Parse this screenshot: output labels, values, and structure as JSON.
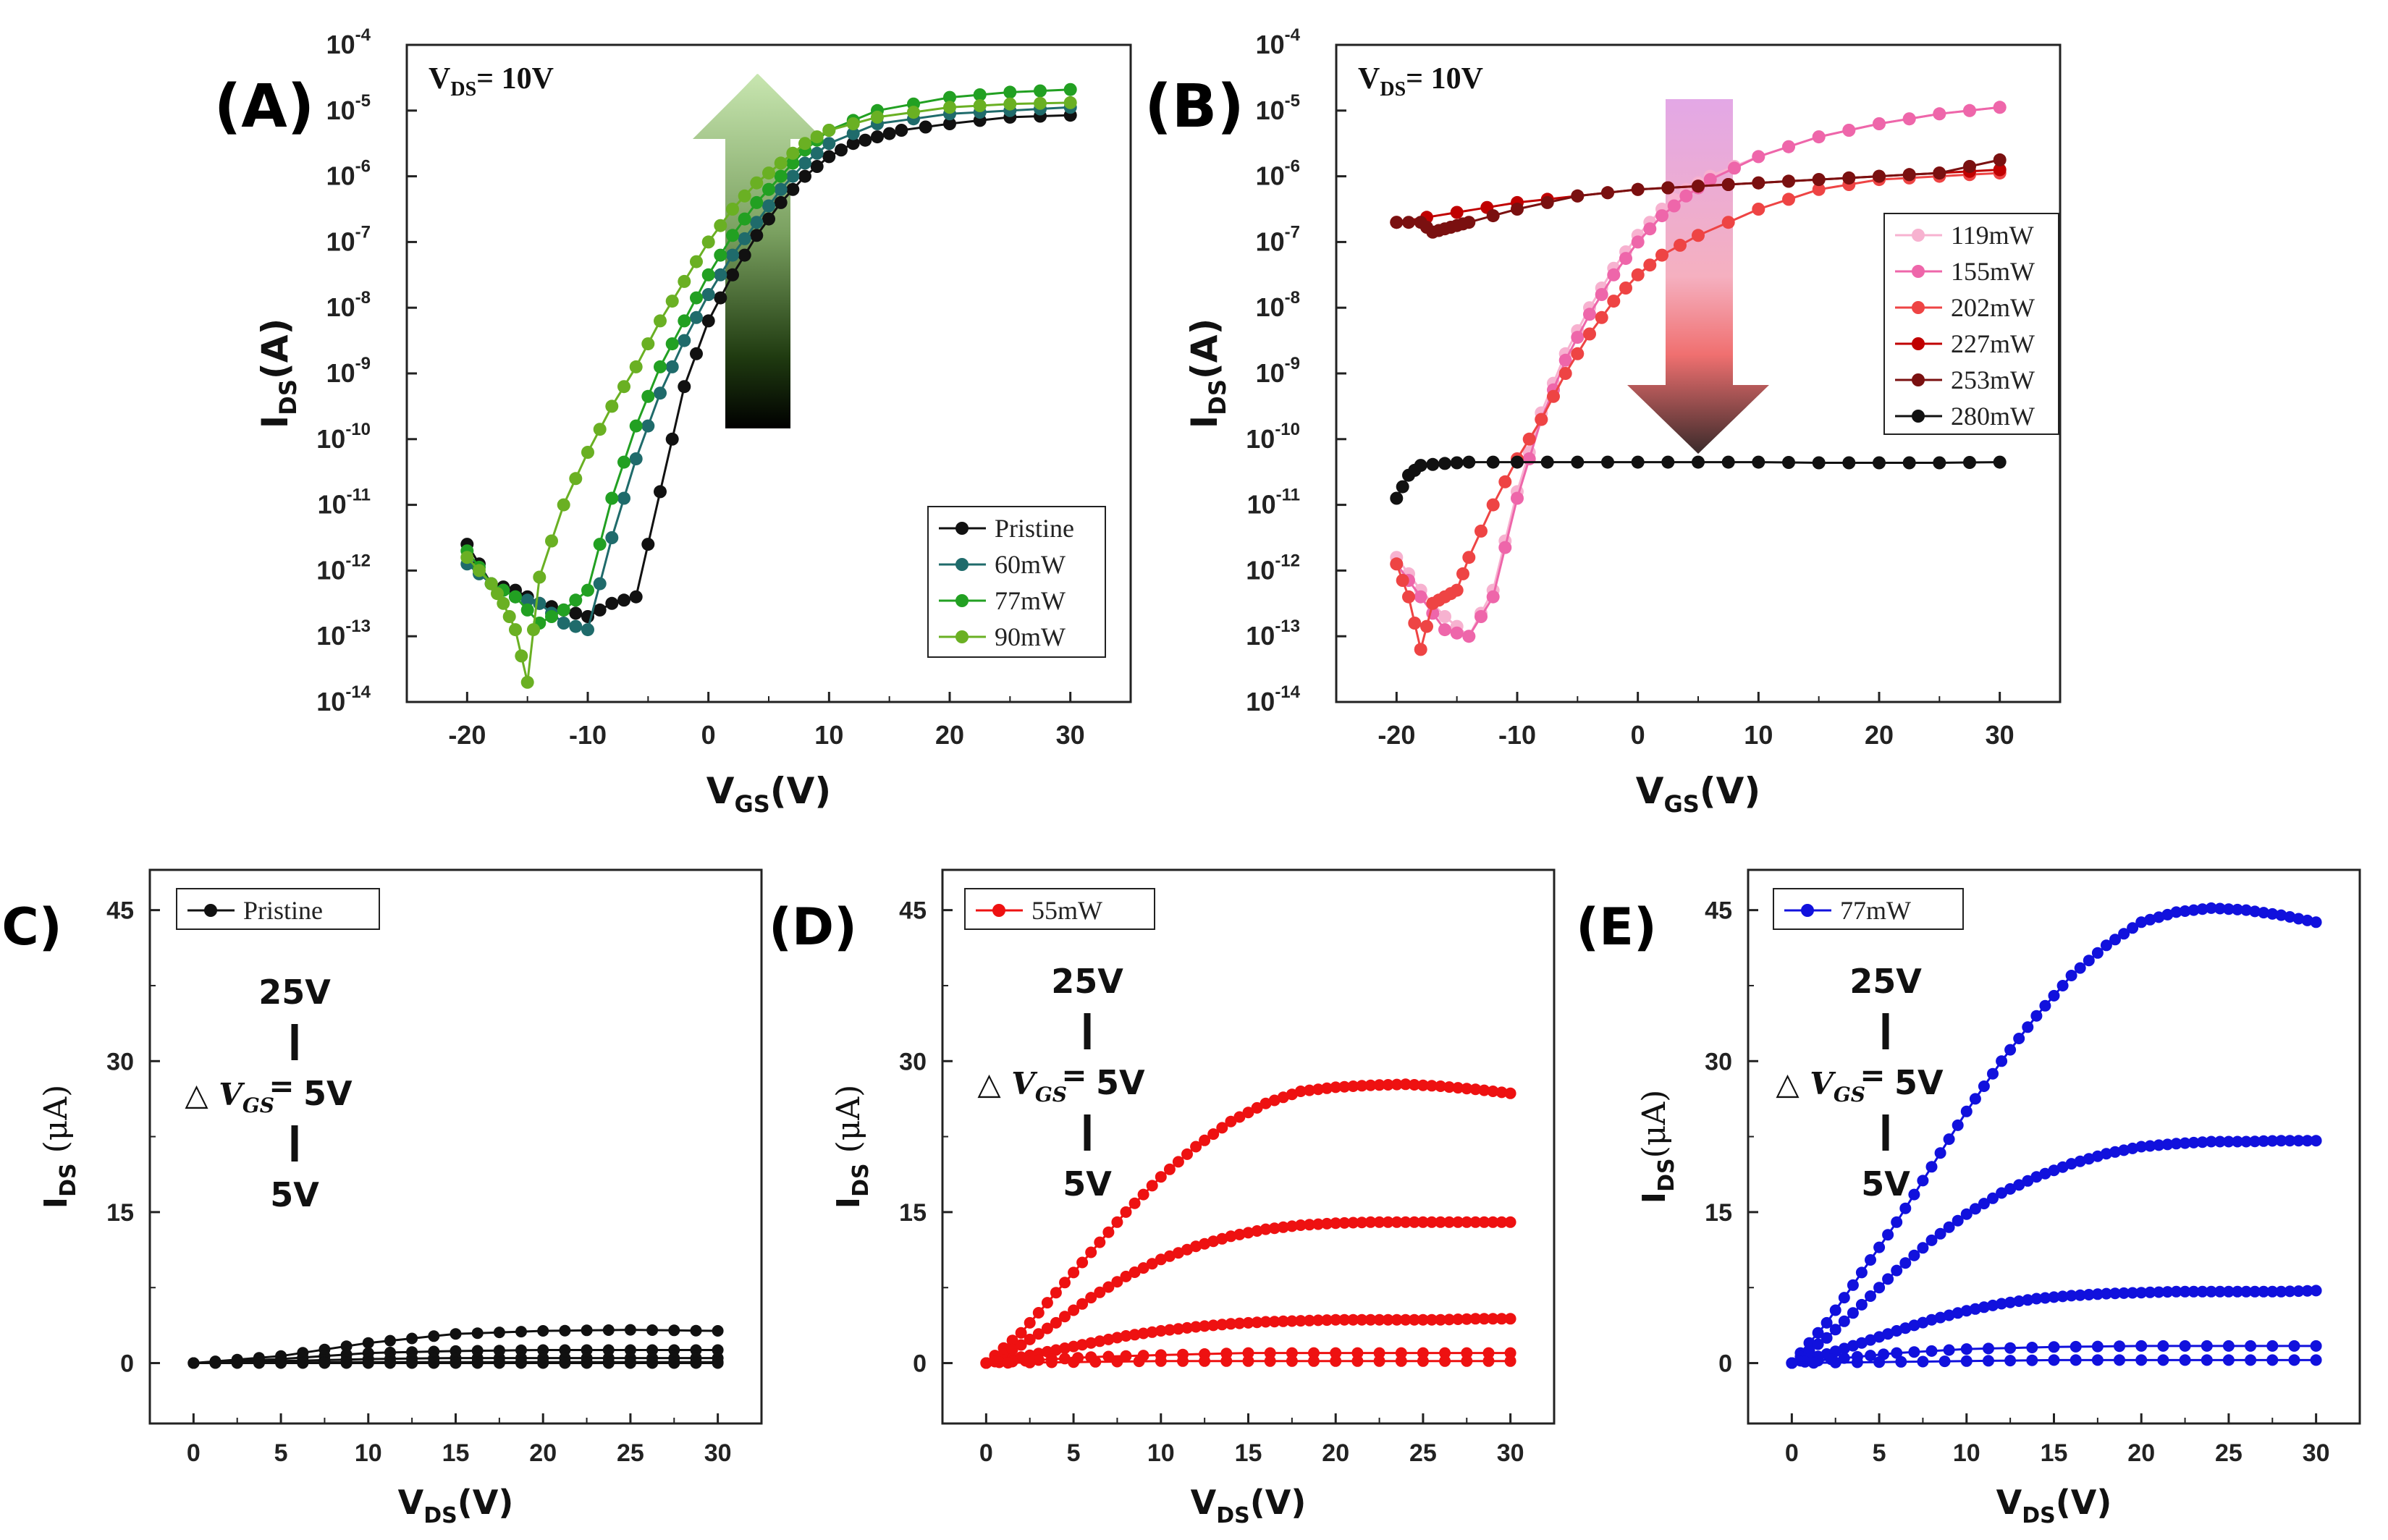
{
  "panels": [
    {
      "id": "A",
      "label": "(A)",
      "type": "line",
      "yscale": "log",
      "xlabel": "V",
      "xlabel_sub": "GS",
      "xlabel_unit": "(V)",
      "ylabel": "I",
      "ylabel_sub": "DS",
      "ylabel_unit": "(A)",
      "xlim": [
        -25,
        35
      ],
      "ylim_exp": [
        -14,
        -4
      ],
      "xticks": [
        -20,
        -10,
        0,
        10,
        20,
        30
      ],
      "yticks": [
        -14,
        -13,
        -12,
        -11,
        -10,
        -9,
        -8,
        -7,
        -6,
        -5,
        -4
      ],
      "annotation": {
        "main": "V",
        "sub": "DS",
        "rest": "= 10V"
      },
      "arrow": "up",
      "legend_position": "bottom-right",
      "series": [
        {
          "name": "Pristine",
          "color": "#111111",
          "x": [
            -20,
            -18,
            -16,
            -14,
            -12,
            -10,
            -8,
            -6,
            -4,
            -2,
            0,
            2,
            4,
            6,
            8,
            10,
            12,
            14,
            16,
            20,
            25,
            30
          ],
          "y": [
            -11.6,
            -12.2,
            -12.3,
            -12.5,
            -12.6,
            -12.7,
            -12.5,
            -12.4,
            -10.8,
            -9.2,
            -8.2,
            -7.5,
            -6.9,
            -6.4,
            -6.0,
            -5.7,
            -5.5,
            -5.4,
            -5.3,
            -5.2,
            -5.1,
            -5.07
          ]
        },
        {
          "name": "60mW",
          "color": "#1f6b6b",
          "x": [
            -20,
            -18,
            -16,
            -14,
            -12,
            -10,
            -8,
            -6,
            -4,
            -2,
            0,
            2,
            4,
            6,
            8,
            10,
            14,
            20,
            25,
            30
          ],
          "y": [
            -11.9,
            -12.2,
            -12.4,
            -12.5,
            -12.8,
            -12.9,
            -11.5,
            -10.3,
            -9.3,
            -8.5,
            -7.8,
            -7.2,
            -6.7,
            -6.2,
            -5.8,
            -5.5,
            -5.2,
            -5.05,
            -5.0,
            -4.95
          ]
        },
        {
          "name": "77mW",
          "color": "#22a022",
          "x": [
            -20,
            -18,
            -16,
            -14,
            -12,
            -10,
            -8,
            -6,
            -4,
            -2,
            0,
            2,
            4,
            6,
            8,
            10,
            14,
            20,
            25,
            30
          ],
          "y": [
            -11.7,
            -12.2,
            -12.4,
            -12.8,
            -12.6,
            -12.3,
            -10.9,
            -9.8,
            -8.9,
            -8.2,
            -7.5,
            -6.9,
            -6.4,
            -6.0,
            -5.6,
            -5.3,
            -5.0,
            -4.8,
            -4.72,
            -4.68
          ]
        },
        {
          "name": "90mW",
          "color": "#6ab023",
          "x": [
            -20,
            -18,
            -17,
            -16,
            -15,
            -14,
            -12,
            -10,
            -8,
            -6,
            -4,
            -2,
            0,
            2,
            4,
            6,
            8,
            10,
            14,
            20,
            25,
            30
          ],
          "y": [
            -11.8,
            -12.2,
            -12.5,
            -12.9,
            -13.7,
            -12.1,
            -11.0,
            -10.2,
            -9.5,
            -8.9,
            -8.2,
            -7.6,
            -7.0,
            -6.5,
            -6.1,
            -5.8,
            -5.5,
            -5.3,
            -5.1,
            -4.95,
            -4.9,
            -4.88
          ]
        }
      ]
    },
    {
      "id": "B",
      "label": "(B)",
      "type": "line",
      "yscale": "log",
      "xlabel": "V",
      "xlabel_sub": "GS",
      "xlabel_unit": "(V)",
      "ylabel": "I",
      "ylabel_sub": "DS",
      "ylabel_unit": "(A)",
      "xlim": [
        -25,
        35
      ],
      "ylim_exp": [
        -14,
        -4
      ],
      "xticks": [
        -20,
        -10,
        0,
        10,
        20,
        30
      ],
      "yticks": [
        -14,
        -13,
        -12,
        -11,
        -10,
        -9,
        -8,
        -7,
        -6,
        -5,
        -4
      ],
      "annotation": {
        "main": "V",
        "sub": "DS",
        "rest": "= 10V"
      },
      "arrow": "down",
      "legend_position": "right",
      "series": [
        {
          "name": "119mW",
          "color": "#f7b2d0",
          "x": [
            -20,
            -18,
            -16,
            -14,
            -12,
            -10,
            -8,
            -6,
            -4,
            -2,
            0,
            2,
            4,
            6,
            10,
            15,
            20,
            25,
            30
          ],
          "y": [
            -11.8,
            -12.3,
            -12.7,
            -13.0,
            -12.3,
            -10.8,
            -9.6,
            -8.7,
            -8.0,
            -7.4,
            -6.9,
            -6.5,
            -6.2,
            -6.0,
            -5.7,
            -5.4,
            -5.2,
            -5.05,
            -4.95
          ]
        },
        {
          "name": "155mW",
          "color": "#ee66aa",
          "x": [
            -20,
            -18,
            -16,
            -14,
            -12,
            -10,
            -8,
            -6,
            -4,
            -2,
            0,
            2,
            4,
            6,
            10,
            15,
            20,
            25,
            30
          ],
          "y": [
            -11.9,
            -12.4,
            -12.9,
            -13.0,
            -12.4,
            -10.9,
            -9.7,
            -8.8,
            -8.1,
            -7.5,
            -7.0,
            -6.6,
            -6.3,
            -6.05,
            -5.7,
            -5.4,
            -5.2,
            -5.05,
            -4.95
          ]
        },
        {
          "name": "202mW",
          "color": "#ee4444",
          "x": [
            -20,
            -19,
            -18,
            -17,
            -16,
            -15,
            -14,
            -12,
            -10,
            -8,
            -6,
            -4,
            -2,
            0,
            2,
            5,
            10,
            15,
            20,
            25,
            30
          ],
          "y": [
            -11.9,
            -12.4,
            -13.2,
            -12.5,
            -12.4,
            -12.3,
            -11.8,
            -11.0,
            -10.3,
            -9.7,
            -9.0,
            -8.4,
            -7.9,
            -7.5,
            -7.2,
            -6.9,
            -6.5,
            -6.2,
            -6.05,
            -6.0,
            -5.95
          ]
        },
        {
          "name": "227mW",
          "color": "#c00000",
          "x": [
            -20,
            -15,
            -10,
            -5,
            0,
            5,
            10,
            15,
            20,
            25,
            30
          ],
          "y": [
            -6.7,
            -6.55,
            -6.4,
            -6.3,
            -6.2,
            -6.15,
            -6.1,
            -6.05,
            -6.0,
            -5.95,
            -5.9
          ]
        },
        {
          "name": "253mW",
          "color": "#7a1010",
          "x": [
            -20,
            -18,
            -17,
            -16,
            -15,
            -14,
            -10,
            -5,
            0,
            5,
            10,
            15,
            20,
            25,
            30
          ],
          "y": [
            -6.7,
            -6.7,
            -6.85,
            -6.8,
            -6.75,
            -6.7,
            -6.5,
            -6.3,
            -6.2,
            -6.15,
            -6.1,
            -6.05,
            -6.0,
            -5.95,
            -5.75
          ]
        },
        {
          "name": "280mW",
          "color": "#111111",
          "x": [
            -20,
            -19,
            -18,
            -16,
            -14,
            -10,
            -5,
            0,
            5,
            10,
            15,
            20,
            25,
            30
          ],
          "y": [
            -10.9,
            -10.55,
            -10.4,
            -10.37,
            -10.35,
            -10.35,
            -10.35,
            -10.35,
            -10.35,
            -10.35,
            -10.36,
            -10.36,
            -10.36,
            -10.35
          ]
        }
      ]
    },
    {
      "id": "C",
      "label": "(C)",
      "type": "line",
      "yscale": "linear",
      "xlabel": "V",
      "xlabel_sub": "DS",
      "xlabel_unit": "(V)",
      "ylabel": "I",
      "ylabel_sub": "DS",
      "ylabel_unit": " (μA)",
      "xlim": [
        -2.5,
        32.5
      ],
      "ylim": [
        -6,
        49
      ],
      "xticks": [
        0,
        5,
        10,
        15,
        20,
        25,
        30
      ],
      "yticks": [
        0,
        15,
        30,
        45
      ],
      "gate_annotation": {
        "top": "25V",
        "mid": "5V",
        "bottom": "5V",
        "symbol": "△",
        "var": "V",
        "sub": "GS"
      },
      "legend_position": "top-left",
      "series": [
        {
          "name": "Pristine",
          "color": "#111111",
          "curves": [
            {
              "x": [
                0,
                5,
                10,
                15,
                20,
                25,
                30
              ],
              "y": [
                0,
                0.7,
                2.0,
                2.9,
                3.2,
                3.3,
                3.2
              ]
            },
            {
              "x": [
                0,
                5,
                10,
                15,
                20,
                25,
                30
              ],
              "y": [
                0,
                0.4,
                1.0,
                1.2,
                1.3,
                1.3,
                1.3
              ]
            },
            {
              "x": [
                0,
                5,
                10,
                15,
                20,
                25,
                30
              ],
              "y": [
                0,
                0.2,
                0.4,
                0.5,
                0.5,
                0.5,
                0.5
              ]
            },
            {
              "x": [
                0,
                5,
                10,
                15,
                20,
                25,
                30
              ],
              "y": [
                0,
                0.05,
                0.1,
                0.1,
                0.1,
                0.1,
                0.1
              ]
            },
            {
              "x": [
                0,
                5,
                10,
                15,
                20,
                25,
                30
              ],
              "y": [
                0,
                0,
                0,
                0,
                0,
                0,
                0
              ]
            }
          ]
        }
      ]
    },
    {
      "id": "D",
      "label": "(D)",
      "type": "line",
      "yscale": "linear",
      "xlabel": "V",
      "xlabel_sub": "DS",
      "xlabel_unit": "(V)",
      "ylabel": "I",
      "ylabel_sub": "DS",
      "ylabel_unit": " (μA)",
      "xlim": [
        -2.5,
        32.5
      ],
      "ylim": [
        -6,
        49
      ],
      "xticks": [
        0,
        5,
        10,
        15,
        20,
        25,
        30
      ],
      "yticks": [
        0,
        15,
        30,
        45
      ],
      "gate_annotation": {
        "top": "25V",
        "mid": "5V",
        "bottom": "5V",
        "symbol": "△",
        "var": "V",
        "sub": "GS"
      },
      "legend_position": "top-left",
      "series": [
        {
          "name": "55mW",
          "color": "#ee1111",
          "curves": [
            {
              "x": [
                0,
                2,
                4,
                6,
                8,
                10,
                12,
                14,
                16,
                18,
                20,
                22,
                24,
                26,
                28,
                30
              ],
              "y": [
                0,
                3,
                7,
                11,
                15,
                18.5,
                21.5,
                24,
                25.8,
                27,
                27.4,
                27.6,
                27.7,
                27.5,
                27.2,
                26.8
              ]
            },
            {
              "x": [
                0,
                2,
                4,
                6,
                8,
                10,
                12,
                14,
                16,
                18,
                20,
                22,
                24,
                26,
                28,
                30
              ],
              "y": [
                0,
                1.8,
                4,
                6.5,
                8.6,
                10.3,
                11.6,
                12.6,
                13.3,
                13.7,
                13.9,
                14.0,
                14.0,
                14.0,
                14.0,
                14.0
              ]
            },
            {
              "x": [
                0,
                2,
                4,
                6,
                8,
                10,
                12,
                14,
                16,
                18,
                20,
                22,
                24,
                26,
                28,
                30
              ],
              "y": [
                0,
                0.6,
                1.3,
                2.0,
                2.7,
                3.2,
                3.6,
                3.9,
                4.1,
                4.2,
                4.3,
                4.3,
                4.3,
                4.3,
                4.4,
                4.4
              ]
            },
            {
              "x": [
                0,
                3,
                6,
                10,
                15,
                20,
                25,
                30
              ],
              "y": [
                0,
                0.3,
                0.6,
                0.8,
                1.0,
                1.0,
                1.0,
                1.0
              ]
            },
            {
              "x": [
                0,
                5,
                10,
                15,
                20,
                25,
                30
              ],
              "y": [
                0,
                0.1,
                0.2,
                0.2,
                0.2,
                0.2,
                0.2
              ]
            }
          ]
        }
      ]
    },
    {
      "id": "E",
      "label": "(E)",
      "type": "line",
      "yscale": "linear",
      "xlabel": "V",
      "xlabel_sub": "DS",
      "xlabel_unit": "(V)",
      "ylabel": "I",
      "ylabel_sub": "DS",
      "ylabel_unit": "(μA)",
      "xlim": [
        -2.5,
        32.5
      ],
      "ylim": [
        -6,
        49
      ],
      "xticks": [
        0,
        5,
        10,
        15,
        20,
        25,
        30
      ],
      "yticks": [
        0,
        15,
        30,
        45
      ],
      "gate_annotation": {
        "top": "25V",
        "mid": "5V",
        "bottom": "5V",
        "symbol": "△",
        "var": "V",
        "sub": "GS"
      },
      "legend_position": "top-left",
      "series": [
        {
          "name": "77mW",
          "color": "#1111dd",
          "curves": [
            {
              "x": [
                0,
                2,
                4,
                6,
                8,
                10,
                12,
                14,
                16,
                18,
                20,
                22,
                24,
                26,
                28,
                30
              ],
              "y": [
                0,
                4,
                9,
                14,
                19.5,
                25,
                30,
                34.5,
                38.5,
                41.5,
                43.8,
                44.8,
                45.2,
                45.0,
                44.5,
                43.8
              ]
            },
            {
              "x": [
                0,
                2,
                4,
                6,
                8,
                10,
                12,
                14,
                16,
                18,
                20,
                22,
                24,
                26,
                28,
                30
              ],
              "y": [
                0,
                2.5,
                5.8,
                9.2,
                12.2,
                14.8,
                16.9,
                18.5,
                19.8,
                20.8,
                21.5,
                21.8,
                22.0,
                22.0,
                22.1,
                22.1
              ]
            },
            {
              "x": [
                0,
                2,
                4,
                6,
                8,
                10,
                12,
                14,
                16,
                18,
                20,
                22,
                24,
                26,
                28,
                30
              ],
              "y": [
                0,
                0.9,
                2.0,
                3.2,
                4.3,
                5.2,
                5.9,
                6.4,
                6.7,
                6.9,
                7.0,
                7.1,
                7.1,
                7.1,
                7.1,
                7.2
              ]
            },
            {
              "x": [
                0,
                3,
                6,
                10,
                15,
                20,
                25,
                30
              ],
              "y": [
                0,
                0.5,
                1.0,
                1.4,
                1.6,
                1.7,
                1.7,
                1.7
              ]
            },
            {
              "x": [
                0,
                5,
                10,
                15,
                20,
                25,
                30
              ],
              "y": [
                0,
                0.1,
                0.2,
                0.3,
                0.3,
                0.3,
                0.3
              ]
            }
          ]
        }
      ]
    }
  ]
}
